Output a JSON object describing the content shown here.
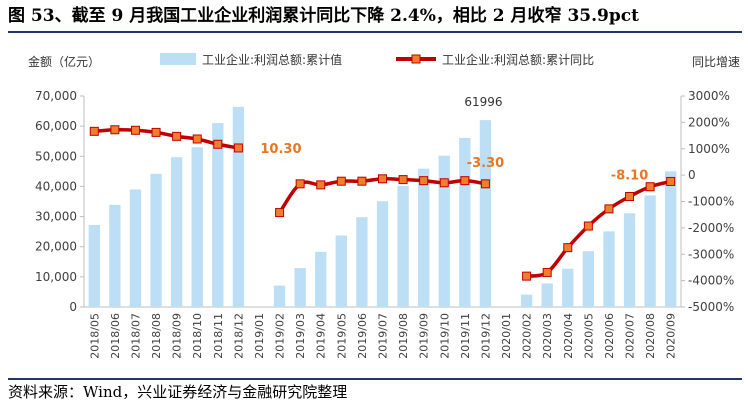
{
  "figure": {
    "title": "图 53、截至 9 月我国工业企业利润累计同比下降 2.4%，相比 2 月收窄 35.9pct",
    "source": "资料来源：Wind，兴业证券经济与金融研究院整理"
  },
  "colors": {
    "bar": "#bddff5",
    "line": "#c00000",
    "marker": "#f07e2c",
    "annotation": "#e87722",
    "axis": "#bfbfbf",
    "text": "#404040",
    "rule": "#1f3864"
  },
  "chart_data": {
    "type": "bar+line",
    "categories": [
      "2018/05",
      "2018/06",
      "2018/07",
      "2018/08",
      "2018/09",
      "2018/10",
      "2018/11",
      "2018/12",
      "2019/01",
      "2019/02",
      "2019/03",
      "2019/04",
      "2019/05",
      "2019/06",
      "2019/07",
      "2019/08",
      "2019/09",
      "2019/10",
      "2019/11",
      "2019/12",
      "2020/01",
      "2020/02",
      "2020/03",
      "2020/04",
      "2020/05",
      "2020/06",
      "2020/07",
      "2020/08",
      "2020/09"
    ],
    "series": [
      {
        "name": "工业企业:利润总额:累计值",
        "type": "bar",
        "axis": "left",
        "values": [
          27200,
          33900,
          39000,
          44200,
          49700,
          53000,
          61000,
          66400,
          null,
          7100,
          12900,
          18300,
          23700,
          29800,
          35100,
          40200,
          45900,
          50200,
          56100,
          61996,
          null,
          4100,
          7800,
          12700,
          18500,
          25100,
          31100,
          37000,
          45000
        ]
      },
      {
        "name": "工业企业:利润总额:累计同比",
        "type": "line",
        "axis": "right",
        "values": [
          1660,
          1720,
          1700,
          1620,
          1470,
          1370,
          1170,
          1030,
          null,
          -1420,
          -330,
          -370,
          -230,
          -230,
          -140,
          -170,
          -210,
          -290,
          -210,
          -330,
          null,
          -3830,
          -3690,
          -2750,
          -1930,
          -1280,
          -810,
          -440,
          -240
        ]
      }
    ],
    "y_left": {
      "label": "金额（亿元）",
      "min": 0,
      "max": 70000,
      "ticks": [
        0,
        10000,
        20000,
        30000,
        40000,
        50000,
        60000,
        70000
      ],
      "tick_labels": [
        "0",
        "10,000",
        "20,000",
        "30,000",
        "40,000",
        "50,000",
        "60,000",
        "70,000"
      ]
    },
    "y_right": {
      "label": "同比增速",
      "min": -5000,
      "max": 3000,
      "ticks": [
        -5000,
        -4000,
        -3000,
        -2000,
        -1000,
        0,
        1000,
        2000,
        3000
      ],
      "tick_labels": [
        "-5000%",
        "-4000%",
        "-3000%",
        "-2000%",
        "-1000%",
        "0",
        "1000%",
        "2000%",
        "3000%"
      ]
    },
    "annotations": [
      {
        "text": "61996",
        "index": 19,
        "series": 0,
        "style": "plain"
      },
      {
        "text": "10.30",
        "index": 7,
        "series": 1,
        "style": "highlight"
      },
      {
        "text": "-3.30",
        "index": 19,
        "series": 1,
        "style": "highlight"
      },
      {
        "text": "-8.10",
        "index": 26,
        "series": 1,
        "style": "highlight"
      }
    ],
    "legend_position": "top",
    "grid": false
  }
}
